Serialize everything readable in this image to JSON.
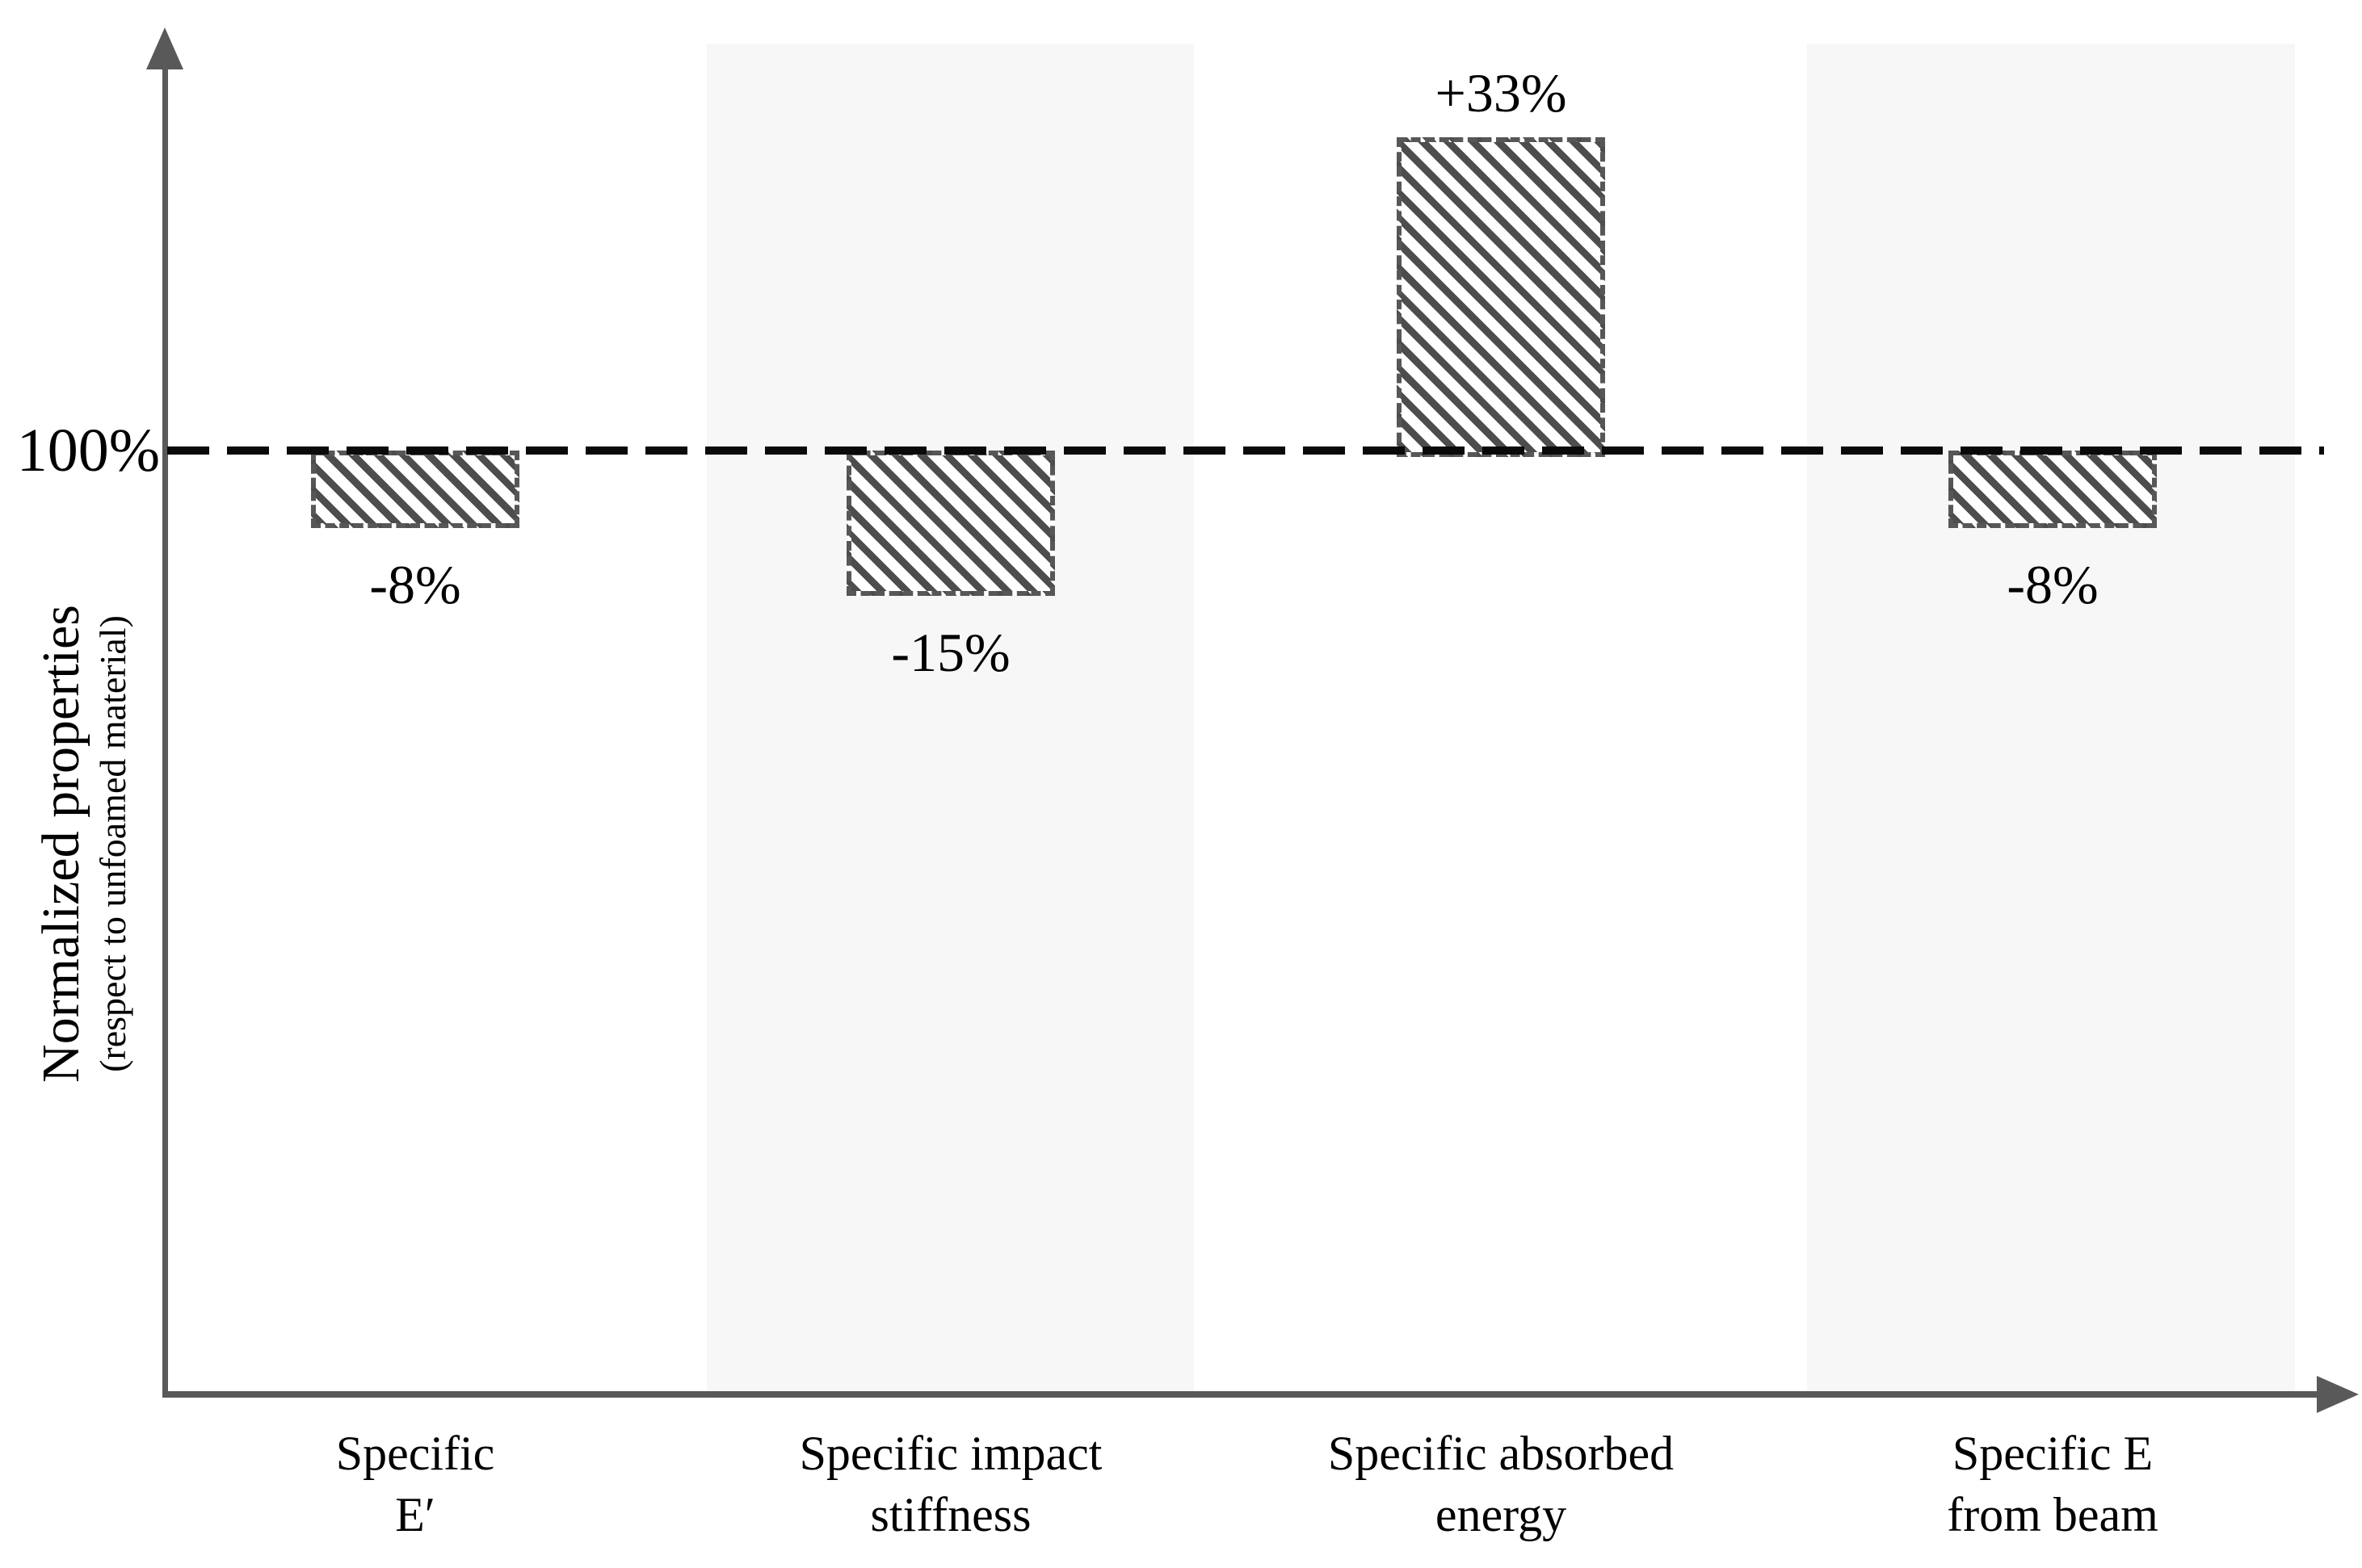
{
  "chart_data": {
    "type": "bar",
    "baseline_label": "100%",
    "baseline_value": 100,
    "unit": "%",
    "ylabel": "Normalized properties",
    "ylabel_sub": "(respect to unfoamed material)",
    "categories": [
      {
        "line1": "Specific",
        "line2": "E′"
      },
      {
        "line1": "Specific impact",
        "line2": "stiffness"
      },
      {
        "line1": "Specific absorbed",
        "line2": "energy"
      },
      {
        "line1": "Specific E",
        "line2": "from beam"
      }
    ],
    "values": [
      -8,
      -15,
      33,
      -8
    ],
    "value_labels": [
      "-8%",
      "-15%",
      "+33%",
      "-8%"
    ],
    "highlighted_columns": [
      2,
      4
    ],
    "legend": null,
    "grid": false,
    "colors": {
      "hatch": "#4d4d4d",
      "bar_border": "#575757",
      "axis": "#595959",
      "baseline_dash": "#0a0a0a",
      "band": "#f7f7f7",
      "text": "#000000"
    }
  }
}
